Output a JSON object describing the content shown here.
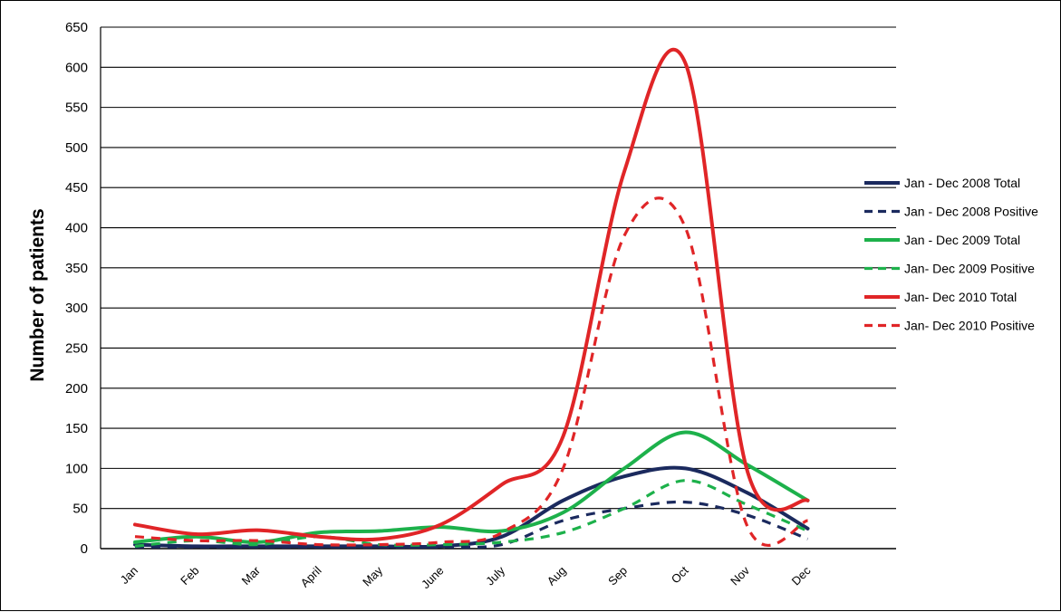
{
  "chart_data": {
    "type": "line",
    "title": "",
    "xlabel": "",
    "ylabel": "Number of patients",
    "ylim": [
      0,
      650
    ],
    "yticks": [
      0,
      50,
      100,
      150,
      200,
      250,
      300,
      350,
      400,
      450,
      500,
      550,
      600,
      650
    ],
    "grid": "horizontal",
    "legend_position": "right",
    "categories": [
      "Jan",
      "Feb",
      "Mar",
      "April",
      "May",
      "June",
      "July",
      "Aug",
      "Sep",
      "Oct",
      "Nov",
      "Dec"
    ],
    "series": [
      {
        "name": "Jan - Dec 2008 Total",
        "color": "#1b2a5e",
        "style": "solid",
        "values": [
          5,
          3,
          3,
          3,
          3,
          3,
          15,
          60,
          90,
          100,
          70,
          25
        ]
      },
      {
        "name": "Jan - Dec 2008 Positive",
        "color": "#1b2a5e",
        "style": "dashed",
        "values": [
          2,
          2,
          2,
          2,
          2,
          2,
          5,
          35,
          50,
          58,
          42,
          12
        ]
      },
      {
        "name": "Jan - Dec 2009 Total",
        "color": "#1db14b",
        "style": "solid",
        "values": [
          8,
          15,
          8,
          20,
          22,
          27,
          22,
          45,
          100,
          145,
          105,
          60
        ]
      },
      {
        "name": "Jan- Dec 2009 Positive",
        "color": "#1db14b",
        "style": "dashed",
        "values": [
          3,
          10,
          5,
          15,
          5,
          5,
          8,
          20,
          50,
          85,
          55,
          22
        ]
      },
      {
        "name": "Jan- Dec 2010 Total",
        "color": "#e02527",
        "style": "solid",
        "values": [
          30,
          18,
          23,
          15,
          12,
          30,
          80,
          140,
          470,
          605,
          100,
          60
        ]
      },
      {
        "name": "Jan- Dec 2010 Positive",
        "color": "#e02527",
        "style": "dashed",
        "values": [
          15,
          10,
          10,
          5,
          5,
          8,
          20,
          100,
          390,
          400,
          30,
          35
        ]
      }
    ]
  }
}
